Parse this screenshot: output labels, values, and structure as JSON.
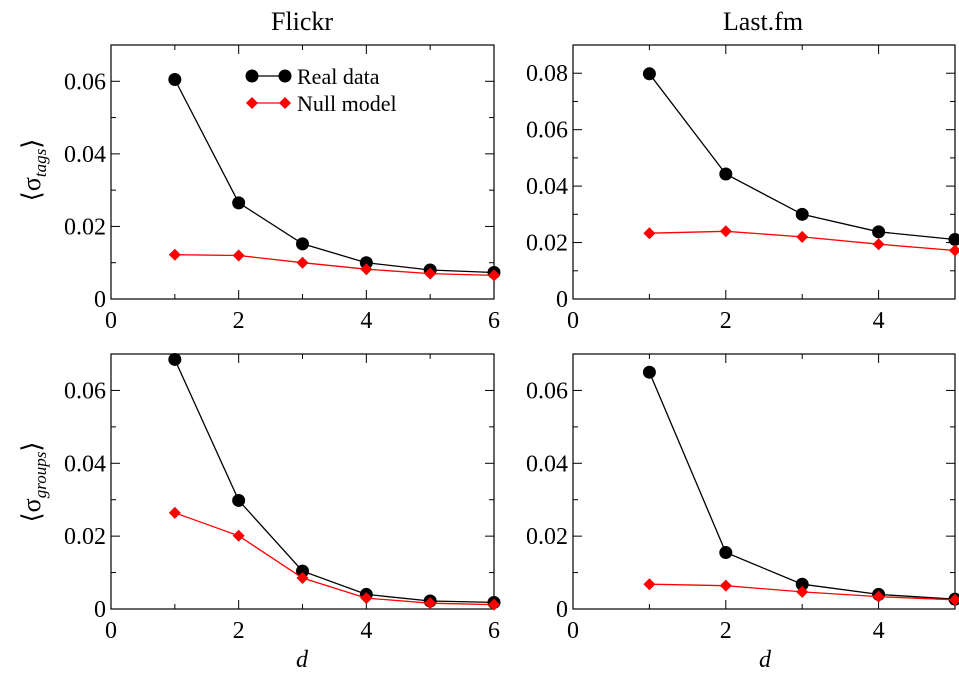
{
  "column_titles": [
    "Flickr",
    "Last.fm"
  ],
  "y_labels": {
    "tags": {
      "symbol": "σ",
      "subscript": "tags"
    },
    "groups": {
      "symbol": "σ",
      "subscript": "groups"
    }
  },
  "x_label": "d",
  "legend": {
    "entries": [
      {
        "label": "Real data",
        "color": "#000000",
        "marker": "circle"
      },
      {
        "label": "Null model",
        "color": "#ff0000",
        "marker": "diamond"
      }
    ],
    "placement": "top-right of top-left panel"
  },
  "colors": {
    "real": "#000000",
    "null": "#ff0000"
  },
  "chart_data": [
    {
      "type": "line",
      "panel": "Flickr – tags",
      "x": [
        1,
        2,
        3,
        4,
        5,
        6
      ],
      "series": [
        {
          "name": "Real data",
          "values": [
            0.0605,
            0.0265,
            0.0152,
            0.01,
            0.008,
            0.0073
          ]
        },
        {
          "name": "Null model",
          "values": [
            0.0122,
            0.012,
            0.01,
            0.0082,
            0.007,
            0.0065
          ]
        }
      ],
      "xlim": [
        0,
        6
      ],
      "ylim": [
        0,
        0.07
      ],
      "xticks": [
        0,
        2,
        4,
        6
      ],
      "yticks": [
        0,
        0.02,
        0.04,
        0.06
      ],
      "xticklabels": [
        "0",
        "2",
        "4",
        "6"
      ],
      "yticklabels": [
        "0",
        "0.02",
        "0.04",
        "0.06"
      ]
    },
    {
      "type": "line",
      "panel": "Last.fm – tags",
      "x": [
        1,
        2,
        3,
        4,
        5
      ],
      "series": [
        {
          "name": "Real data",
          "values": [
            0.0798,
            0.0443,
            0.03,
            0.0238,
            0.0211
          ]
        },
        {
          "name": "Null model",
          "values": [
            0.0233,
            0.024,
            0.022,
            0.0194,
            0.0172
          ]
        }
      ],
      "xlim": [
        0,
        5
      ],
      "ylim": [
        0,
        0.09
      ],
      "xticks": [
        0,
        2,
        4
      ],
      "yticks": [
        0,
        0.02,
        0.04,
        0.06,
        0.08
      ],
      "xticklabels": [
        "0",
        "2",
        "4"
      ],
      "yticklabels": [
        "0",
        "0.02",
        "0.04",
        "0.06",
        "0.08"
      ]
    },
    {
      "type": "line",
      "panel": "Flickr – groups",
      "x": [
        1,
        2,
        3,
        4,
        5,
        6
      ],
      "series": [
        {
          "name": "Real data",
          "values": [
            0.0685,
            0.0298,
            0.0104,
            0.004,
            0.0022,
            0.0018
          ]
        },
        {
          "name": "Null model",
          "values": [
            0.0264,
            0.0201,
            0.0085,
            0.003,
            0.0016,
            0.0012
          ]
        }
      ],
      "xlim": [
        0,
        6
      ],
      "ylim": [
        0,
        0.07
      ],
      "xticks": [
        0,
        2,
        4,
        6
      ],
      "yticks": [
        0,
        0.02,
        0.04,
        0.06
      ],
      "xticklabels": [
        "0",
        "2",
        "4",
        "6"
      ],
      "yticklabels": [
        "0",
        "0.02",
        "0.04",
        "0.06"
      ]
    },
    {
      "type": "line",
      "panel": "Last.fm – groups",
      "x": [
        1,
        2,
        3,
        4,
        5
      ],
      "series": [
        {
          "name": "Real data",
          "values": [
            0.065,
            0.0155,
            0.0068,
            0.004,
            0.0027
          ]
        },
        {
          "name": "Null model",
          "values": [
            0.0068,
            0.0064,
            0.0047,
            0.0034,
            0.0025
          ]
        }
      ],
      "xlim": [
        0,
        5
      ],
      "ylim": [
        0,
        0.07
      ],
      "xticks": [
        0,
        2,
        4
      ],
      "yticks": [
        0,
        0.02,
        0.04,
        0.06
      ],
      "xticklabels": [
        "0",
        "2",
        "4"
      ],
      "yticklabels": [
        "0",
        "0.02",
        "0.04",
        "0.06"
      ]
    }
  ]
}
